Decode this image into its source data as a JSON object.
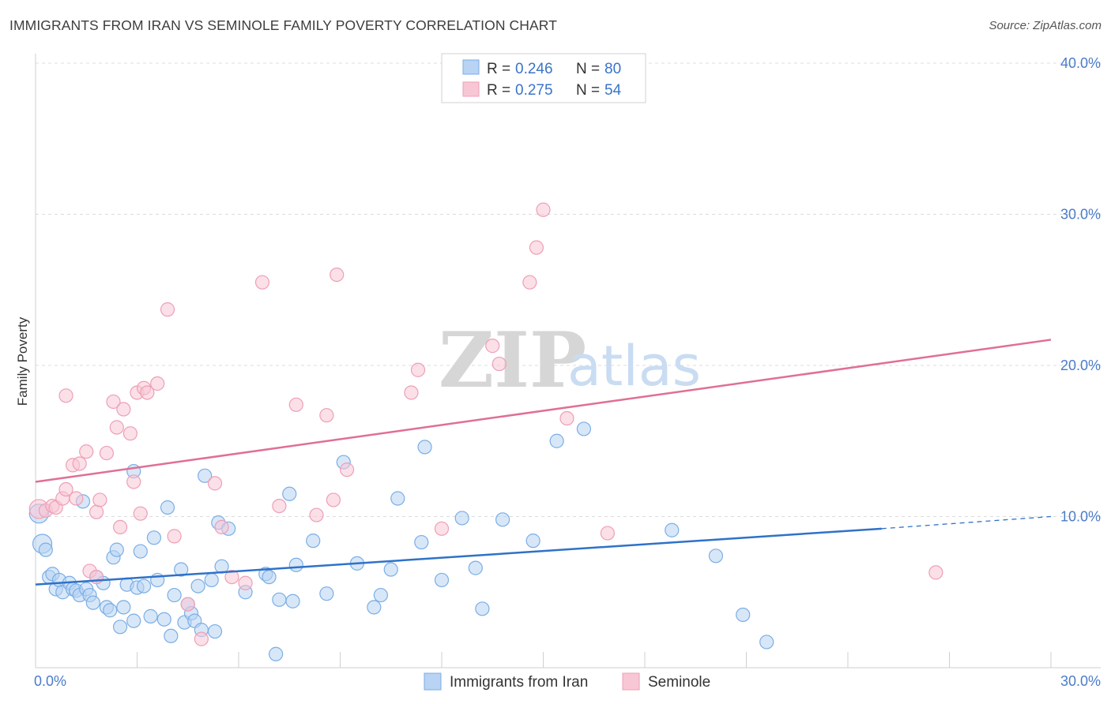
{
  "chart_data": {
    "type": "scatter",
    "title": "IMMIGRANTS FROM IRAN VS SEMINOLE FAMILY POVERTY CORRELATION CHART",
    "source": "Source: ZipAtlas.com",
    "xlabel": "",
    "ylabel": "Family Poverty",
    "xlim": [
      0,
      30
    ],
    "ylim": [
      0,
      40
    ],
    "x_tick_labels": [
      "0.0%",
      "30.0%"
    ],
    "y_tick_labels": [
      "10.0%",
      "20.0%",
      "30.0%",
      "40.0%"
    ],
    "watermark": {
      "zip": "ZIP",
      "atlas": "atlas"
    },
    "legend": [
      {
        "r_label": "R =",
        "r_value": "0.246",
        "n_label": "N =",
        "n_value": "80"
      },
      {
        "r_label": "R =",
        "r_value": "0.275",
        "n_label": "N =",
        "n_value": "54"
      }
    ],
    "series": [
      {
        "name": "Immigrants from Iran",
        "color": "#7aaee6",
        "fill": "#b8d3f3",
        "line_color": "#2f72c8",
        "trend": {
          "x0": 0,
          "y0": 5.5,
          "x1": 25,
          "y1": 9.2,
          "dash_x1": 30,
          "dash_y1": 10.0
        },
        "points": [
          [
            0.1,
            10.2
          ],
          [
            0.2,
            8.2
          ],
          [
            0.3,
            7.8
          ],
          [
            0.4,
            6.0
          ],
          [
            0.5,
            6.2
          ],
          [
            0.6,
            5.2
          ],
          [
            0.7,
            5.8
          ],
          [
            0.8,
            5.0
          ],
          [
            1.0,
            5.6
          ],
          [
            1.1,
            5.2
          ],
          [
            1.2,
            5.1
          ],
          [
            1.3,
            4.8
          ],
          [
            1.4,
            11.0
          ],
          [
            1.5,
            5.2
          ],
          [
            1.6,
            4.8
          ],
          [
            1.7,
            4.3
          ],
          [
            1.8,
            6.0
          ],
          [
            2.0,
            5.6
          ],
          [
            2.1,
            4.0
          ],
          [
            2.2,
            3.8
          ],
          [
            2.3,
            7.3
          ],
          [
            2.4,
            7.8
          ],
          [
            2.5,
            2.7
          ],
          [
            2.6,
            4.0
          ],
          [
            2.7,
            5.5
          ],
          [
            2.9,
            3.1
          ],
          [
            3.0,
            5.3
          ],
          [
            3.1,
            7.7
          ],
          [
            3.2,
            5.4
          ],
          [
            3.4,
            3.4
          ],
          [
            3.5,
            8.6
          ],
          [
            3.6,
            5.8
          ],
          [
            3.8,
            3.2
          ],
          [
            4.0,
            2.1
          ],
          [
            4.1,
            4.8
          ],
          [
            4.3,
            6.5
          ],
          [
            4.4,
            3.0
          ],
          [
            4.5,
            4.2
          ],
          [
            4.6,
            3.6
          ],
          [
            4.7,
            3.1
          ],
          [
            4.8,
            5.4
          ],
          [
            4.9,
            2.5
          ],
          [
            5.0,
            12.7
          ],
          [
            5.2,
            5.8
          ],
          [
            5.3,
            2.4
          ],
          [
            5.4,
            9.6
          ],
          [
            5.5,
            6.7
          ],
          [
            5.7,
            9.2
          ],
          [
            6.2,
            5.0
          ],
          [
            6.8,
            6.2
          ],
          [
            6.9,
            6.0
          ],
          [
            7.1,
            0.9
          ],
          [
            7.2,
            4.5
          ],
          [
            7.5,
            11.5
          ],
          [
            7.6,
            4.4
          ],
          [
            7.7,
            6.8
          ],
          [
            8.2,
            8.4
          ],
          [
            8.6,
            4.9
          ],
          [
            9.1,
            13.6
          ],
          [
            9.5,
            6.9
          ],
          [
            10.0,
            4.0
          ],
          [
            10.2,
            4.8
          ],
          [
            10.5,
            6.5
          ],
          [
            10.7,
            11.2
          ],
          [
            11.4,
            8.3
          ],
          [
            11.5,
            14.6
          ],
          [
            12.0,
            5.8
          ],
          [
            12.6,
            9.9
          ],
          [
            13.0,
            6.6
          ],
          [
            13.2,
            3.9
          ],
          [
            13.8,
            9.8
          ],
          [
            14.7,
            8.4
          ],
          [
            15.4,
            15.0
          ],
          [
            16.2,
            15.8
          ],
          [
            18.8,
            9.1
          ],
          [
            20.1,
            7.4
          ],
          [
            20.9,
            3.5
          ],
          [
            21.6,
            1.7
          ],
          [
            3.9,
            10.6
          ],
          [
            2.9,
            13.0
          ]
        ]
      },
      {
        "name": "Seminole",
        "color": "#ee9fb5",
        "fill": "#f8c7d5",
        "line_color": "#e06f94",
        "trend": {
          "x0": 0,
          "y0": 12.3,
          "x1": 30,
          "y1": 21.7
        },
        "points": [
          [
            0.1,
            10.5
          ],
          [
            0.3,
            10.4
          ],
          [
            0.5,
            10.7
          ],
          [
            0.6,
            10.6
          ],
          [
            0.8,
            11.2
          ],
          [
            0.9,
            11.8
          ],
          [
            0.9,
            18.0
          ],
          [
            1.1,
            13.4
          ],
          [
            1.2,
            11.2
          ],
          [
            1.3,
            13.5
          ],
          [
            1.5,
            14.3
          ],
          [
            1.6,
            6.4
          ],
          [
            1.8,
            6.0
          ],
          [
            1.8,
            10.3
          ],
          [
            1.9,
            11.1
          ],
          [
            2.1,
            14.2
          ],
          [
            2.3,
            17.6
          ],
          [
            2.4,
            15.9
          ],
          [
            2.5,
            9.3
          ],
          [
            2.6,
            17.1
          ],
          [
            2.8,
            15.5
          ],
          [
            2.9,
            12.3
          ],
          [
            3.0,
            18.2
          ],
          [
            3.1,
            10.2
          ],
          [
            3.2,
            18.5
          ],
          [
            3.3,
            18.2
          ],
          [
            3.6,
            18.8
          ],
          [
            3.9,
            23.7
          ],
          [
            4.1,
            8.7
          ],
          [
            4.5,
            4.2
          ],
          [
            4.9,
            1.9
          ],
          [
            5.3,
            12.2
          ],
          [
            5.5,
            9.3
          ],
          [
            5.8,
            6.0
          ],
          [
            6.2,
            5.6
          ],
          [
            6.7,
            25.5
          ],
          [
            7.2,
            10.7
          ],
          [
            7.7,
            17.4
          ],
          [
            8.3,
            10.1
          ],
          [
            8.6,
            16.7
          ],
          [
            8.8,
            11.1
          ],
          [
            8.9,
            26.0
          ],
          [
            9.2,
            13.1
          ],
          [
            11.1,
            18.2
          ],
          [
            11.3,
            19.7
          ],
          [
            12.0,
            9.2
          ],
          [
            13.5,
            21.3
          ],
          [
            13.7,
            20.1
          ],
          [
            14.6,
            25.5
          ],
          [
            14.8,
            27.8
          ],
          [
            15.0,
            30.3
          ],
          [
            15.7,
            16.5
          ],
          [
            16.9,
            8.9
          ],
          [
            26.6,
            6.3
          ]
        ]
      }
    ]
  }
}
